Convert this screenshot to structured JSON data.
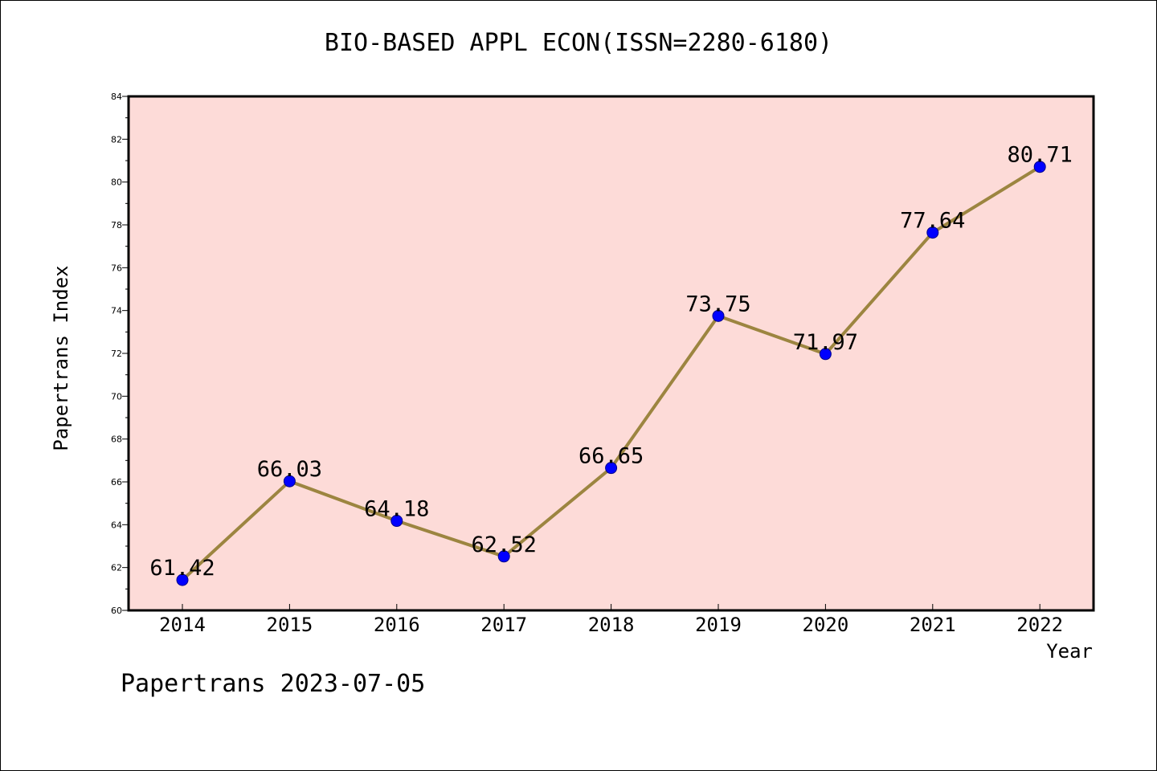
{
  "title": "BIO-BASED APPL ECON(ISSN=2280-6180)",
  "footer": "Papertrans 2023-07-05",
  "colors": {
    "plot_background": "#fddbd8",
    "line": "#9c8540",
    "marker": "#0000ff",
    "axis": "#000000"
  },
  "chart_data": {
    "type": "line",
    "title": "BIO-BASED APPL ECON(ISSN=2280-6180)",
    "xlabel": "Year",
    "ylabel": "Papertrans Index",
    "ylim": [
      60,
      84
    ],
    "yticks": [
      "60",
      "62",
      "64",
      "66",
      "68",
      "70",
      "72",
      "74",
      "76",
      "78",
      "80",
      "82",
      "84"
    ],
    "categories": [
      "2014",
      "2015",
      "2016",
      "2017",
      "2018",
      "2019",
      "2020",
      "2021",
      "2022"
    ],
    "series": [
      {
        "values": [
          61.42,
          66.03,
          64.18,
          62.52,
          66.65,
          73.75,
          71.97,
          77.64,
          80.71
        ],
        "labels": [
          "61.42",
          "66.03",
          "64.18",
          "62.52",
          "66.65",
          "73.75",
          "71.97",
          "77.64",
          "80.71"
        ]
      }
    ],
    "grid": false,
    "legend": "none"
  }
}
